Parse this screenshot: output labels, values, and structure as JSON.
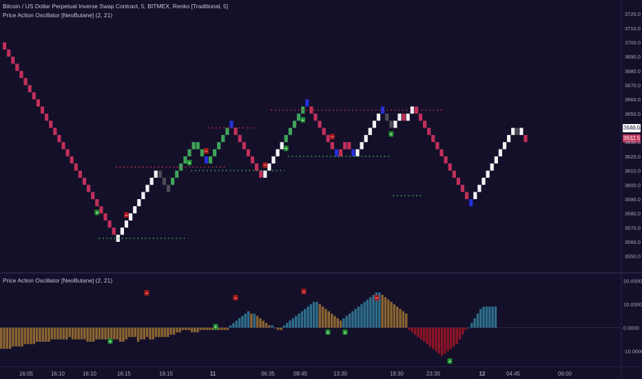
{
  "header": {
    "symbol_line": "Bitcoin / US Dollar Perpetual Inverse Swap Contract, 5, BITMEX, Renko [Traditional, 5]",
    "indicator_line": "Price Action Oscillator [NeoButane] (2, 21)"
  },
  "oscillator_header": "Price Action Oscillator [NeoButane] (2, 21)",
  "price_tags": {
    "last": "3640.0",
    "current": "3632.5"
  },
  "colors": {
    "background": "#14102a",
    "bear_brick": "#c0305a",
    "bull_brick": "#f2f2f5",
    "green_brick": "#3fa35a",
    "gray_brick": "#4d4d55",
    "blue_marker": "#2430d8",
    "resistance_dots": "#c8304a",
    "support_dots": "#3fb04a",
    "osc_positive": "#2e6e8a",
    "osc_brown": "#8a6432",
    "osc_negative": "#8a1426",
    "signal_minus": "#a81a1a",
    "signal_plus": "#1a8a2a"
  },
  "chart_data": [
    {
      "type": "renko",
      "title": "",
      "y_axis_ticks": [
        "3720.0",
        "3710.0",
        "3700.0",
        "3690.0",
        "3680.0",
        "3670.0",
        "3660.0",
        "3650.0",
        "3640.0",
        "3630.0",
        "3620.0",
        "3610.0",
        "3600.0",
        "3590.0",
        "3580.0",
        "3570.0",
        "3560.0",
        "3550.0"
      ],
      "ylim": [
        3545,
        3722
      ],
      "box_size": 5,
      "bricks": [
        {
          "seg": "down",
          "from": 3700,
          "to": 3565,
          "color": "bear"
        },
        {
          "seg": "up",
          "from": 3560,
          "to": 3610,
          "color": "bull"
        },
        {
          "seg": "down",
          "from": 3610,
          "to": 3595,
          "color": "gray"
        },
        {
          "seg": "up",
          "from": 3600,
          "to": 3630,
          "color": "green"
        },
        {
          "seg": "down",
          "from": 3630,
          "to": 3620,
          "color": "green"
        },
        {
          "seg": "down",
          "from": 3620,
          "to": 3615,
          "color": "blue"
        },
        {
          "seg": "up",
          "from": 3615,
          "to": 3640,
          "color": "green"
        },
        {
          "seg": "up",
          "from": 3640,
          "to": 3645,
          "color": "blue"
        },
        {
          "seg": "down",
          "from": 3640,
          "to": 3605,
          "color": "bear"
        },
        {
          "seg": "up",
          "from": 3605,
          "to": 3630,
          "color": "bull"
        },
        {
          "seg": "up",
          "from": 3630,
          "to": 3655,
          "color": "green"
        },
        {
          "seg": "up",
          "from": 3655,
          "to": 3660,
          "color": "blue"
        },
        {
          "seg": "down",
          "from": 3655,
          "to": 3625,
          "color": "bear"
        },
        {
          "seg": "down",
          "from": 3625,
          "to": 3620,
          "color": "blue"
        },
        {
          "seg": "up",
          "from": 3620,
          "to": 3630,
          "color": "bear"
        },
        {
          "seg": "down",
          "from": 3630,
          "to": 3625,
          "color": "bear"
        },
        {
          "seg": "down",
          "from": 3625,
          "to": 3620,
          "color": "blue"
        },
        {
          "seg": "up",
          "from": 3620,
          "to": 3650,
          "color": "bull"
        },
        {
          "seg": "up",
          "from": 3650,
          "to": 3655,
          "color": "blue"
        },
        {
          "seg": "down",
          "from": 3650,
          "to": 3640,
          "color": "gray"
        },
        {
          "seg": "up",
          "from": 3640,
          "to": 3650,
          "color": "bull"
        },
        {
          "seg": "down",
          "from": 3650,
          "to": 3645,
          "color": "bear"
        },
        {
          "seg": "up",
          "from": 3645,
          "to": 3655,
          "color": "bull"
        },
        {
          "seg": "down",
          "from": 3655,
          "to": 3590,
          "color": "bear"
        },
        {
          "seg": "down",
          "from": 3590,
          "to": 3585,
          "color": "blue"
        },
        {
          "seg": "up",
          "from": 3590,
          "to": 3640,
          "color": "bull"
        },
        {
          "seg": "down",
          "from": 3640,
          "to": 3635,
          "color": "gray"
        },
        {
          "seg": "up",
          "from": 3635,
          "to": 3640,
          "color": "bull"
        },
        {
          "seg": "down",
          "from": 3635,
          "to": 3630,
          "color": "bear"
        }
      ],
      "resistance_levels": [
        {
          "price": 3612.5,
          "from_brick": 26,
          "to_brick": 53
        },
        {
          "price": 3640,
          "from_brick": 48,
          "to_brick": 60
        },
        {
          "price": 3652.5,
          "from_brick": 63,
          "to_brick": 105
        }
      ],
      "support_levels": [
        {
          "price": 3562.5,
          "from_brick": 22,
          "to_brick": 44
        },
        {
          "price": 3610,
          "from_brick": 44,
          "to_brick": 67
        },
        {
          "price": 3620,
          "from_brick": 67,
          "to_brick": 92
        },
        {
          "price": 3592.5,
          "from_brick": 92,
          "to_brick": 100
        }
      ],
      "signals": [
        {
          "kind": "minus",
          "brick": 29
        },
        {
          "kind": "minus",
          "brick": 48
        },
        {
          "kind": "minus",
          "brick": 62
        },
        {
          "kind": "minus",
          "brick": 78
        },
        {
          "kind": "plus",
          "brick": 22
        },
        {
          "kind": "plus",
          "brick": 44
        },
        {
          "kind": "plus",
          "brick": 67
        },
        {
          "kind": "plus",
          "brick": 71
        },
        {
          "kind": "plus",
          "brick": 92
        }
      ]
    },
    {
      "type": "bar",
      "title": "",
      "y_axis_ticks": [
        "20.0000",
        "10.0000",
        "0.0000",
        "-10.0000"
      ],
      "ylim": [
        -16,
        21
      ],
      "values": [
        -9,
        -9,
        -9,
        -9,
        -8,
        -8,
        -8,
        -8,
        -7,
        -7,
        -7,
        -7,
        -6,
        -6,
        -6,
        -6,
        -6,
        -5,
        -5,
        -5,
        -5,
        -5,
        -5,
        -4,
        -5,
        -5,
        -5,
        -5,
        -5,
        -6,
        -6,
        -6,
        -5,
        -5,
        -5,
        -5,
        -5,
        -5,
        -5,
        -5,
        -6,
        -6,
        -5,
        -4,
        -4,
        -4,
        -6,
        -5,
        -5,
        -4,
        -5,
        -5,
        -4,
        -4,
        -4,
        -4,
        -4,
        -3,
        -3,
        -2,
        -2,
        -1,
        -1,
        -1,
        -2,
        -2,
        -2,
        -1,
        -1,
        -1,
        -1,
        -1,
        -1,
        -1,
        -1,
        -1,
        -1,
        1,
        2,
        3,
        4,
        5,
        6,
        7,
        6,
        6,
        5,
        4,
        3,
        2,
        1,
        1,
        0,
        -1,
        -1,
        1,
        2,
        3,
        4,
        5,
        6,
        7,
        8,
        9,
        10,
        11,
        11,
        10,
        9,
        8,
        7,
        6,
        5,
        4,
        3,
        4,
        5,
        6,
        7,
        8,
        9,
        10,
        11,
        12,
        13,
        14,
        15,
        15,
        14,
        13,
        12,
        11,
        10,
        9,
        8,
        7,
        6,
        -1,
        -2,
        -3,
        -4,
        -5,
        -6,
        -7,
        -8,
        -9,
        -10,
        -11,
        -12,
        -11,
        -10,
        -9,
        -8,
        -7,
        -5,
        -3,
        -1,
        0,
        2,
        4,
        6,
        8,
        9,
        9,
        9,
        9,
        9
      ],
      "bar_colors": "positive rising = teal, positive falling = brown, negative = dark red",
      "x_tick_labels": [
        "16:05",
        "16:10",
        "16:10",
        "16:15",
        "19:15",
        "11",
        "06:35",
        "08:45",
        "13:30",
        "19:30",
        "23:30",
        "12",
        "04:45",
        "06:00"
      ]
    }
  ]
}
